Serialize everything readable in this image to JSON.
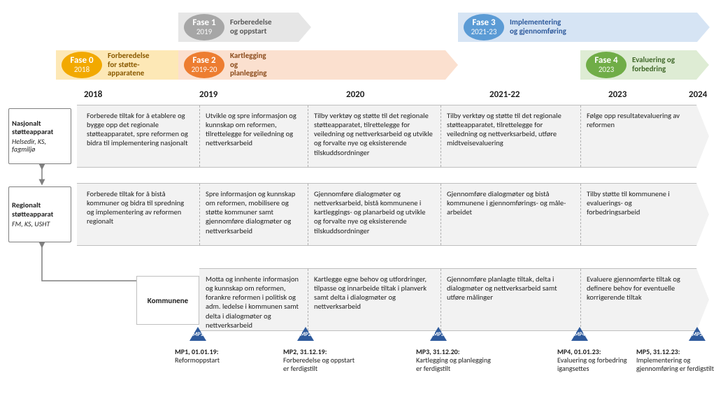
{
  "phases": {
    "p0": {
      "title": "Fase 0",
      "year": "2018",
      "label": "Forberedelse\nfor støtte-\napparatene",
      "bubble_color": "#f2a900",
      "bar_color": "#fde8b6"
    },
    "p1": {
      "title": "Fase 1",
      "year": "2019",
      "label": "Forberedelse\nog oppstart",
      "bubble_color": "#a6a6a6",
      "bar_color": "#e6e6e6",
      "label_color": "#595959"
    },
    "p2": {
      "title": "Fase 2",
      "year": "2019-20",
      "label": "Kartlegging\nog\nplanlegging",
      "bubble_color": "#ed7d31",
      "bar_color": "#fbe0cf",
      "label_color": "#8a4a1a"
    },
    "p3": {
      "title": "Fase 3",
      "year": "2021-23",
      "label": "Implementering\nog gjennomføring",
      "bubble_color": "#5b9bd5",
      "bar_color": "#d6e4f4",
      "label_color": "#2e5a9c"
    },
    "p4": {
      "title": "Fase 4",
      "year": "2023",
      "label": "Evaluering og\nforbedring",
      "bubble_color": "#70ad47",
      "bar_color": "#deecd4",
      "label_color": "#40682a"
    }
  },
  "years": {
    "y2018": "2018",
    "y2019": "2019",
    "y2020": "2020",
    "y2021": "2021-22",
    "y2023": "2023",
    "y2024": "2024"
  },
  "rows": {
    "nasjonalt": {
      "title": "Nasjonalt støtteapparat",
      "sub": "Helsedir, KS, fagmiljø",
      "c2018": "Forberede tiltak for å etablere og bygge opp det regionale støtteapparatet, spre reformen og bidra til implementering nasjonalt",
      "c2019": "Utvikle og spre informasjon og kunnskap om reformen, tilrettelegge for veiledning og nettverksarbeid",
      "c2020": "Tilby verktøy og støtte til det regionale støtteapparatet, tilrettelegge for veiledning og nettverksarbeid og utvikle og forvalte nye og eksisterende tilskuddsordninger",
      "c2021": "Tilby verktøy og støtte til det regionale støtteapparatet, tilrettelegge for veiledning og nettverksarbeid, utføre midtveisevaluering",
      "c2023": "Følge opp resultatevaluering av reformen"
    },
    "regionalt": {
      "title": "Regionalt støtteapparat",
      "sub": "FM, KS, USHT",
      "c2018": "Forberede tiltak for å bistå kommuner og bidra til spredning og implementering av reformen regionalt",
      "c2019": "Spre informasjon og kunnskap om reformen, mobilisere og støtte kommuner samt gjennomføre dialogmøter og nettverksarbeid",
      "c2020": "Gjennomføre dialogmøter og nettverksarbeid, bistå kommunene i kartleggings- og planarbeid og utvikle og forvalte nye og eksisterende tilskuddsordninger",
      "c2021": "Gjennomføre dialogmøter og bistå kommunene i gjennomførings- og måle-arbeidet",
      "c2023": "Tilby støtte til kommunene i evaluerings- og forbedringsarbeid"
    },
    "kommunene": {
      "title": "Kommunene",
      "c2019": "Motta og innhente informasjon og kunnskap om reformen, forankre reformen i politisk og adm. ledelse i kommunen samt delta i dialogmøter og nettverksarbeid",
      "c2020": "Kartlegge egne behov og utfordringer, tilpasse og innarbeide tiltak i planverk samt delta i dialogmøter og nettverksarbeid",
      "c2021": "Gjennomføre planlagte tiltak, delta i dialogmøter og nettverksarbeid samt  utføre målinger",
      "c2023": "Evaluere gjennomførte tiltak og definere behov for eventuelle korrigerende tiltak"
    }
  },
  "milestones": {
    "mp1": {
      "tag": "MP1",
      "head": "MP1, 01.01.19:",
      "body": "Reformoppstart"
    },
    "mp2": {
      "tag": "MP2",
      "head": "MP2, 31.12.19:",
      "body": "Forberedelse og oppstart er ferdigstilt"
    },
    "mp3": {
      "tag": "MP3",
      "head": "MP3, 31.12.20:",
      "body": "Kartlegging og planlegging er ferdigstilt"
    },
    "mp4": {
      "tag": "MP4",
      "head": "MP4, 01.01.23:",
      "body": "Evaluering og forbedring igangsettes"
    },
    "mp5": {
      "tag": "MP5",
      "head": "MP5, 31.12.23:",
      "body": "Implementering og gjennomføring er ferdigstilt"
    }
  },
  "layout": {
    "col_x": {
      "c2018": 120,
      "c2019": 285,
      "c2020": 440,
      "c2021": 630,
      "c2023": 830,
      "end": 1000
    },
    "lane_y": {
      "nasjonalt": 150,
      "regionalt": 262,
      "kommunene": 384
    },
    "lane_h": 90
  }
}
